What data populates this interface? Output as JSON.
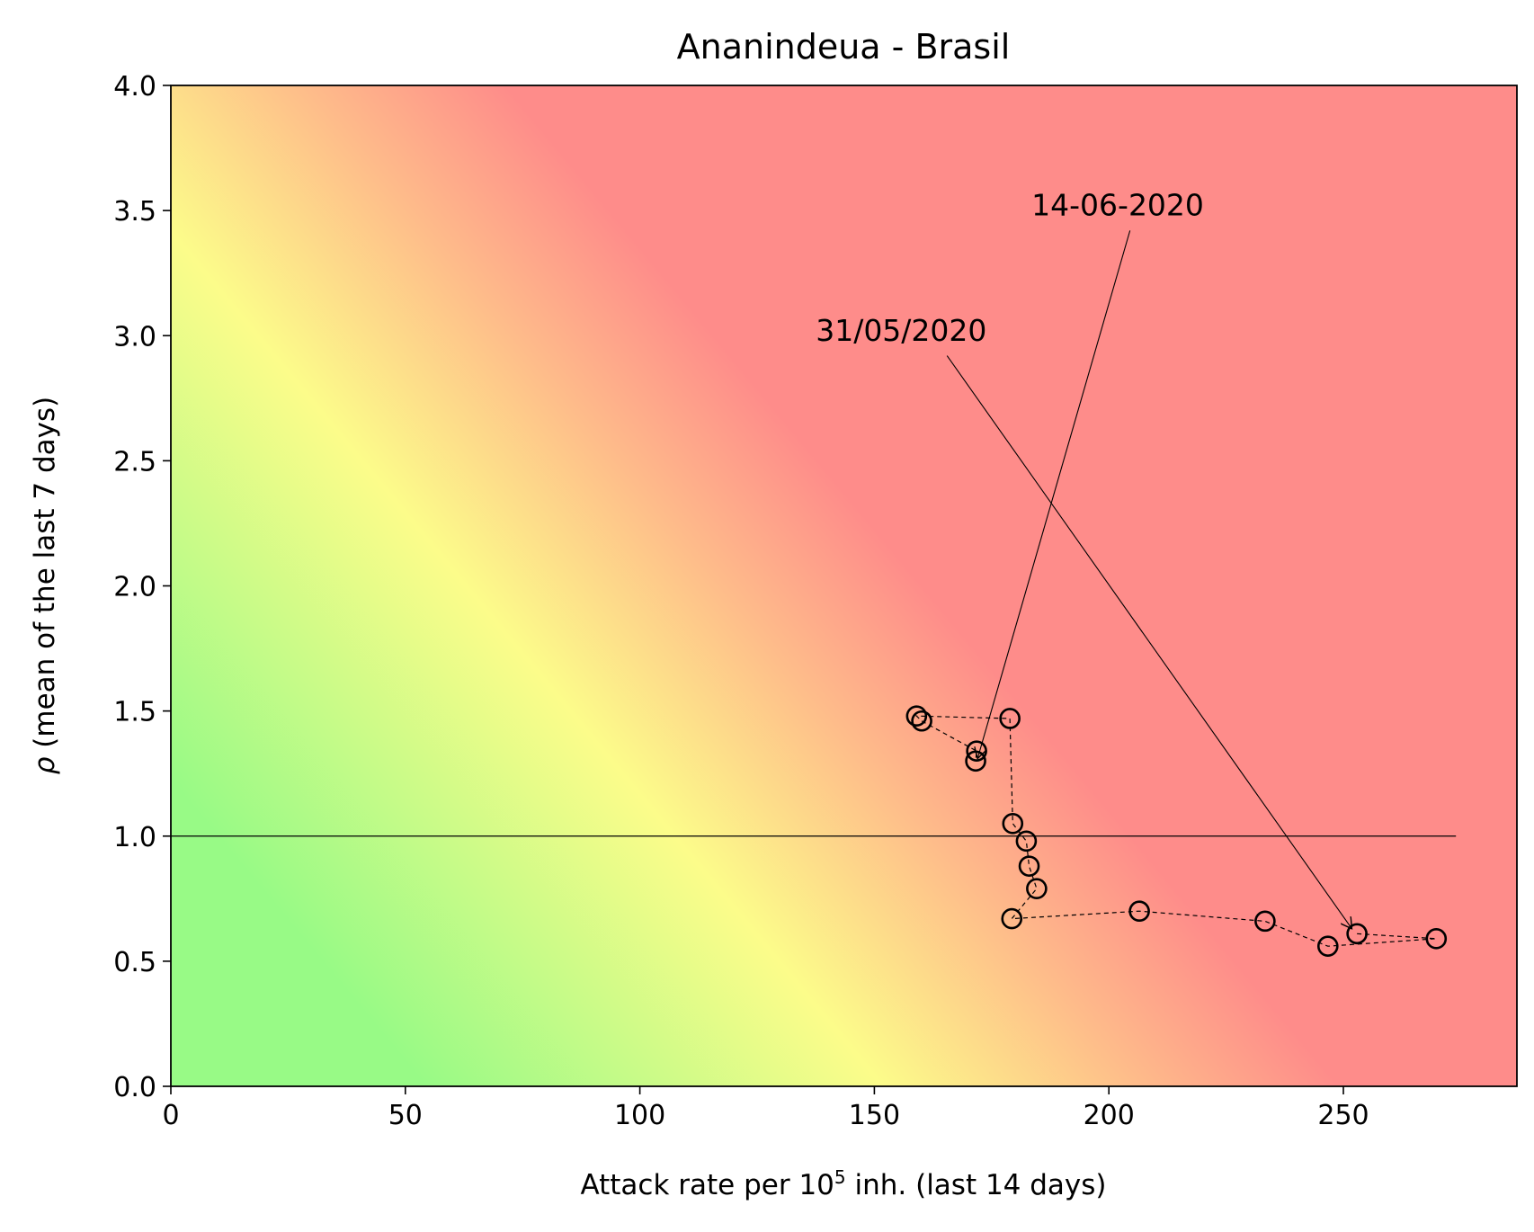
{
  "chart_data": {
    "type": "scatter",
    "title": "Ananindeua - Brasil",
    "xlabel_prefix": "Attack rate per 10",
    "xlabel_sup": "5",
    "xlabel_suffix": " inh. (last 14 days)",
    "ylabel_symbol": "ρ",
    "ylabel_rest": " (mean of the last 7 days)",
    "xlim": [
      0,
      287
    ],
    "ylim": [
      0,
      4
    ],
    "xticks": [
      0,
      50,
      100,
      150,
      200,
      250
    ],
    "xtick_labels": [
      "0",
      "50",
      "100",
      "150",
      "200",
      "250"
    ],
    "yticks": [
      0,
      0.5,
      1,
      1.5,
      2,
      2.5,
      3,
      3.5,
      4
    ],
    "ytick_labels": [
      "0.0",
      "0.5",
      "1.0",
      "1.5",
      "2.0",
      "2.5",
      "3.0",
      "3.5",
      "4.0"
    ],
    "reference_line": {
      "y": 1.0,
      "x_end": 274
    },
    "grid": false,
    "background": "risk gradient green-yellow-red",
    "marker": "open circle",
    "line_style": "dashed",
    "points": [
      {
        "x": 252.9,
        "y": 0.61
      },
      {
        "x": 269.8,
        "y": 0.59
      },
      {
        "x": 246.7,
        "y": 0.56
      },
      {
        "x": 233.3,
        "y": 0.66
      },
      {
        "x": 206.5,
        "y": 0.7
      },
      {
        "x": 179.3,
        "y": 0.67
      },
      {
        "x": 184.6,
        "y": 0.79
      },
      {
        "x": 183.0,
        "y": 0.88
      },
      {
        "x": 182.4,
        "y": 0.98
      },
      {
        "x": 179.5,
        "y": 1.05
      },
      {
        "x": 178.9,
        "y": 1.47
      },
      {
        "x": 159.0,
        "y": 1.48
      },
      {
        "x": 160.1,
        "y": 1.46
      },
      {
        "x": 171.8,
        "y": 1.34
      },
      {
        "x": 171.6,
        "y": 1.3
      }
    ],
    "annotations": [
      {
        "text": "31/05/2020",
        "text_x": 137.5,
        "text_y": 2.98,
        "line_from": {
          "x": 165.5,
          "y": 2.92
        },
        "arrow_to": {
          "x": 251.8,
          "y": 0.63
        }
      },
      {
        "text": "14-06-2020",
        "text_x": 183.5,
        "text_y": 3.48,
        "line_from": {
          "x": 204.5,
          "y": 3.42
        },
        "arrow_to": {
          "x": 172.0,
          "y": 1.31
        }
      }
    ]
  }
}
